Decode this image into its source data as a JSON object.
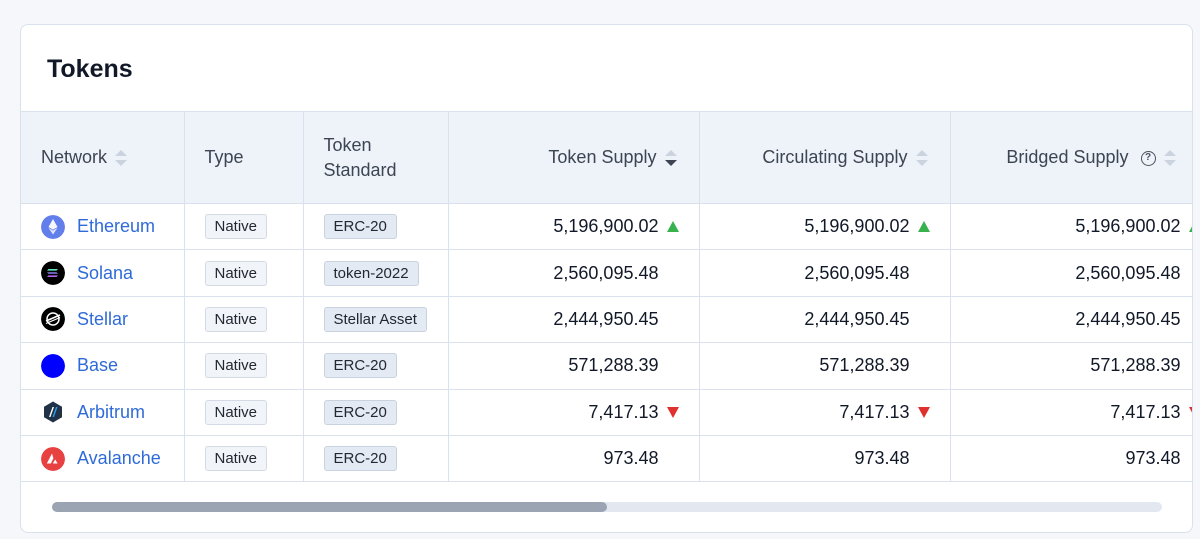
{
  "card": {
    "title": "Tokens"
  },
  "columns": {
    "network": "Network",
    "type": "Type",
    "token_standard_line1": "Token",
    "token_standard_line2": "Standard",
    "token_supply": "Token Supply",
    "circulating_supply": "Circulating Supply",
    "bridged_supply": "Bridged Supply",
    "help_glyph": "?"
  },
  "rows": [
    {
      "network": "Ethereum",
      "icon": "ethereum-icon",
      "type": "Native",
      "standard": "ERC-20",
      "token_supply": "5,196,900.02",
      "circulating_supply": "5,196,900.02",
      "bridged_supply": "5,196,900.02",
      "trend": "up"
    },
    {
      "network": "Solana",
      "icon": "solana-icon",
      "type": "Native",
      "standard": "token-2022",
      "token_supply": "2,560,095.48",
      "circulating_supply": "2,560,095.48",
      "bridged_supply": "2,560,095.48",
      "trend": "none"
    },
    {
      "network": "Stellar",
      "icon": "stellar-icon",
      "type": "Native",
      "standard": "Stellar Asset",
      "token_supply": "2,444,950.45",
      "circulating_supply": "2,444,950.45",
      "bridged_supply": "2,444,950.45",
      "trend": "none"
    },
    {
      "network": "Base",
      "icon": "base-icon",
      "type": "Native",
      "standard": "ERC-20",
      "token_supply": "571,288.39",
      "circulating_supply": "571,288.39",
      "bridged_supply": "571,288.39",
      "trend": "none"
    },
    {
      "network": "Arbitrum",
      "icon": "arbitrum-icon",
      "type": "Native",
      "standard": "ERC-20",
      "token_supply": "7,417.13",
      "circulating_supply": "7,417.13",
      "bridged_supply": "7,417.13",
      "trend": "down"
    },
    {
      "network": "Avalanche",
      "icon": "avalanche-icon",
      "type": "Native",
      "standard": "ERC-20",
      "token_supply": "973.48",
      "circulating_supply": "973.48",
      "bridged_supply": "973.48",
      "trend": "none"
    }
  ],
  "scrollbar": {
    "position_fraction": 0.0,
    "visible_fraction": 0.5
  },
  "colors": {
    "link": "#2f6bd8",
    "trend_up": "#37b24d",
    "trend_down": "#e03131",
    "ethereum": "#627eea",
    "solana_bg": "#000000",
    "stellar_bg": "#000000",
    "base": "#0000ff",
    "arbitrum_bg": "#213147",
    "avalanche": "#e84142"
  }
}
